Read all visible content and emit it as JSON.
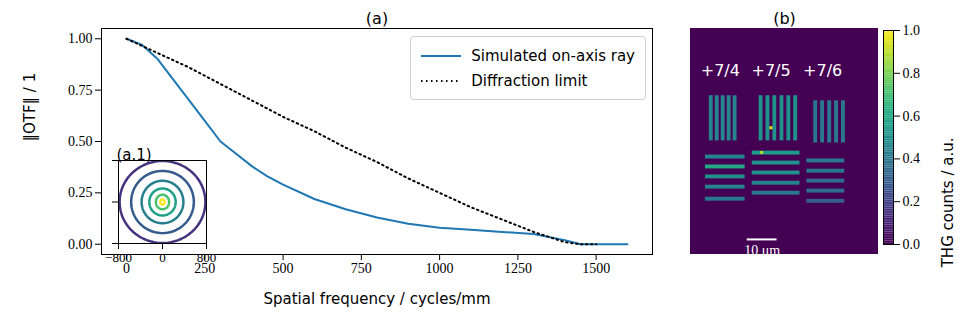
{
  "chart_data": [
    {
      "type": "line",
      "title": "(a)",
      "x_label": "Spatial frequency / cycles/mm",
      "y_label": "‖OTF‖ / 1",
      "xlim": [
        -80,
        1680
      ],
      "ylim": [
        -0.05,
        1.05
      ],
      "xticks": [
        0,
        250,
        500,
        750,
        1000,
        1250,
        1500
      ],
      "yticks": [
        {
          "value": 0,
          "label": "0.00"
        },
        {
          "value": 0.25,
          "label": "0.25"
        },
        {
          "value": 0.5,
          "label": "0.50"
        },
        {
          "value": 0.75,
          "label": "0.75"
        },
        {
          "value": 1,
          "label": "1.00"
        }
      ],
      "legend": "upper right",
      "series": [
        {
          "name": "Simulated on-axis ray",
          "color": "#1f77b4",
          "line_style": "solid",
          "x": [
            0,
            50,
            100,
            150,
            200,
            250,
            300,
            350,
            400,
            450,
            500,
            600,
            700,
            800,
            900,
            1000,
            1100,
            1200,
            1300,
            1400,
            1450,
            1500,
            1600
          ],
          "values": [
            1,
            0.97,
            0.9,
            0.8,
            0.7,
            0.6,
            0.5,
            0.44,
            0.38,
            0.33,
            0.29,
            0.22,
            0.17,
            0.13,
            0.1,
            0.08,
            0.07,
            0.06,
            0.05,
            0.02,
            0,
            0,
            0
          ]
        },
        {
          "name": "Diffraction limit",
          "color": "#000000",
          "line_style": "dotted",
          "x": [
            0,
            100,
            200,
            300,
            400,
            500,
            600,
            700,
            800,
            900,
            1000,
            1100,
            1200,
            1300,
            1400,
            1450,
            1500
          ],
          "values": [
            1,
            0.93,
            0.86,
            0.78,
            0.7,
            0.62,
            0.55,
            0.47,
            0.4,
            0.32,
            0.25,
            0.18,
            0.12,
            0.06,
            0.01,
            0,
            0
          ]
        }
      ]
    },
    {
      "type": "contour",
      "title": "(a.1)",
      "xlim": [
        -800,
        800
      ],
      "ylim": [
        -800,
        800
      ],
      "xticks": [
        {
          "value": -800,
          "label": "−800"
        },
        0,
        800
      ],
      "yticks": [
        -800,
        0,
        800
      ],
      "tick_labels": "x",
      "contours": [
        {
          "rx": 780,
          "ry": 790,
          "color": "#46327e"
        },
        {
          "rx": 570,
          "ry": 600,
          "color": "#365c8d"
        },
        {
          "rx": 380,
          "ry": 410,
          "color": "#277f8e"
        },
        {
          "rx": 240,
          "ry": 260,
          "color": "#1fa187"
        },
        {
          "rx": 120,
          "ry": 140,
          "color": "#4ac16d"
        },
        {
          "rx": 40,
          "ry": 50,
          "color": "#fde725"
        }
      ]
    },
    {
      "type": "heatmap",
      "title": "(b)",
      "xlim": [
        0,
        63
      ],
      "ylim": [
        0,
        75
      ],
      "tick_labels": false,
      "cells": [
        {
          "x1": 6.3,
          "x2": 7.6,
          "y1": 22.3,
          "y2": 37.3,
          "value": 0.45
        },
        {
          "x1": 8.3,
          "x2": 9.6,
          "y1": 22.3,
          "y2": 37.3,
          "value": 0.45
        },
        {
          "x1": 10.3,
          "x2": 11.6,
          "y1": 22.3,
          "y2": 37.3,
          "value": 0.45
        },
        {
          "x1": 12.3,
          "x2": 13.6,
          "y1": 22.3,
          "y2": 37.3,
          "value": 0.45
        },
        {
          "x1": 14.3,
          "x2": 15.6,
          "y1": 22.3,
          "y2": 37.3,
          "value": 0.45
        },
        {
          "x1": 5,
          "x2": 18.3,
          "y1": 42,
          "y2": 43.3,
          "value": 0.45
        },
        {
          "x1": 5,
          "x2": 18.3,
          "y1": 45.3,
          "y2": 46.6,
          "value": 0.6
        },
        {
          "x1": 5,
          "x2": 18.3,
          "y1": 48.6,
          "y2": 49.9,
          "value": 0.5
        },
        {
          "x1": 5,
          "x2": 18.3,
          "y1": 52,
          "y2": 53.3,
          "value": 0.45
        },
        {
          "x1": 5,
          "x2": 18.3,
          "y1": 56,
          "y2": 57.3,
          "value": 0.4
        },
        {
          "x1": 23,
          "x2": 24.3,
          "y1": 22.3,
          "y2": 37.3,
          "value": 0.5
        },
        {
          "x1": 25.3,
          "x2": 26.6,
          "y1": 22.3,
          "y2": 37.3,
          "value": 0.5
        },
        {
          "x1": 27.6,
          "x2": 28.9,
          "y1": 22.3,
          "y2": 37.3,
          "value": 0.5
        },
        {
          "x1": 30,
          "x2": 31.3,
          "y1": 22.3,
          "y2": 37.3,
          "value": 0.5
        },
        {
          "x1": 32.3,
          "x2": 33.6,
          "y1": 22.3,
          "y2": 37.3,
          "value": 0.5
        },
        {
          "x1": 34.6,
          "x2": 35.9,
          "y1": 22.3,
          "y2": 37.3,
          "value": 0.5
        },
        {
          "x1": 20.7,
          "x2": 36.7,
          "y1": 40.7,
          "y2": 42,
          "value": 0.55
        },
        {
          "x1": 20.7,
          "x2": 36.7,
          "y1": 44,
          "y2": 45.3,
          "value": 0.5
        },
        {
          "x1": 20.7,
          "x2": 36.7,
          "y1": 47.3,
          "y2": 48.6,
          "value": 0.5
        },
        {
          "x1": 20.7,
          "x2": 36.7,
          "y1": 50.7,
          "y2": 52,
          "value": 0.45
        },
        {
          "x1": 20.7,
          "x2": 36.7,
          "y1": 54,
          "y2": 55.3,
          "value": 0.4
        },
        {
          "x1": 41.3,
          "x2": 42.6,
          "y1": 24,
          "y2": 38,
          "value": 0.4
        },
        {
          "x1": 43.6,
          "x2": 44.9,
          "y1": 24,
          "y2": 38,
          "value": 0.4
        },
        {
          "x1": 46,
          "x2": 47.3,
          "y1": 24,
          "y2": 38,
          "value": 0.4
        },
        {
          "x1": 48.3,
          "x2": 49.6,
          "y1": 24,
          "y2": 38,
          "value": 0.4
        },
        {
          "x1": 50.6,
          "x2": 51.9,
          "y1": 24,
          "y2": 38,
          "value": 0.4
        },
        {
          "x1": 39,
          "x2": 51.7,
          "y1": 43.3,
          "y2": 44.6,
          "value": 0.4
        },
        {
          "x1": 39,
          "x2": 51.7,
          "y1": 46.7,
          "y2": 48,
          "value": 0.4
        },
        {
          "x1": 39,
          "x2": 51.7,
          "y1": 50,
          "y2": 51.3,
          "value": 0.35
        },
        {
          "x1": 39,
          "x2": 51.7,
          "y1": 53.3,
          "y2": 54.6,
          "value": 0.35
        },
        {
          "x1": 39,
          "x2": 51.7,
          "y1": 56.7,
          "y2": 58,
          "value": 0.3
        },
        {
          "x1": 26.6,
          "x2": 27.6,
          "y1": 32.6,
          "y2": 33.6,
          "value": 0.95
        },
        {
          "x1": 23.5,
          "x2": 24.5,
          "y1": 40.8,
          "y2": 41.8,
          "value": 0.9
        }
      ],
      "annotations": [
        {
          "text": "+7/4",
          "x": 10,
          "y": 14
        },
        {
          "text": "+7/5",
          "x": 27,
          "y": 14
        },
        {
          "text": "+7/6",
          "x": 44.3,
          "y": 14
        }
      ],
      "scale_bar": {
        "length": 10,
        "label": "10 μm",
        "x": 19,
        "y": 70
      },
      "colorbar": {
        "label": "THG counts / a.u.",
        "range": [
          0,
          1
        ],
        "ticks": [
          {
            "value": 0,
            "label": "0.0"
          },
          {
            "value": 0.2,
            "label": "0.2"
          },
          {
            "value": 0.4,
            "label": "0.4"
          },
          {
            "value": 0.6,
            "label": "0.6"
          },
          {
            "value": 0.8,
            "label": "0.8"
          },
          {
            "value": 1,
            "label": "1.0"
          }
        ]
      }
    }
  ]
}
